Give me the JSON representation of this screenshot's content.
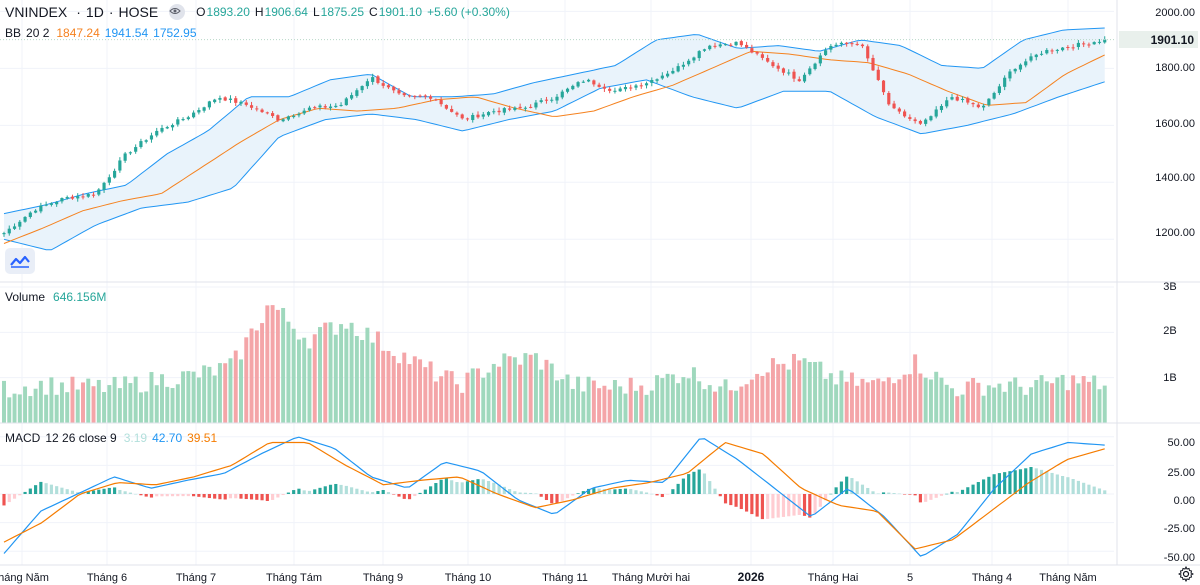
{
  "symbol": {
    "name": "VNINDEX",
    "interval": "1D",
    "exchange": "HOSE",
    "o_label": "O",
    "open": "1893.20",
    "h_label": "H",
    "high": "1906.64",
    "l_label": "L",
    "low": "1875.25",
    "c_label": "C",
    "close": "1901.10",
    "change": "+5.60 (+0.30%)"
  },
  "bb_legend": {
    "name": "BB",
    "params": "20 2",
    "basis": "1847.24",
    "upper": "1941.54",
    "lower": "1752.95"
  },
  "volume_legend": {
    "name": "Volume",
    "value": "646.156M"
  },
  "macd_legend": {
    "name": "MACD",
    "params": "12 26 close 9",
    "hist": "3.19",
    "macd": "42.70",
    "signal": "39.51"
  },
  "price_axis": {
    "ticks": [
      "2000.00",
      "1800.00",
      "1600.00",
      "1400.00",
      "1200.00"
    ],
    "last_price": "1901.10"
  },
  "volume_axis": {
    "ticks": [
      "3B",
      "2B",
      "1B"
    ]
  },
  "macd_axis": {
    "ticks": [
      "50.00",
      "25.00",
      "0.00",
      "-25.00",
      "-50.00"
    ]
  },
  "time_axis": {
    "labels": [
      "tháng Năm",
      "Tháng 6",
      "Tháng 7",
      "Tháng Tám",
      "Tháng 9",
      "Tháng 10",
      "Tháng 11",
      "Tháng Mười hai",
      "2026",
      "Tháng Hai",
      "5",
      "Tháng 4",
      "Tháng Năm"
    ]
  },
  "colors": {
    "up": "#26a69a",
    "down": "#ef5350",
    "vol_up": "#9fd8bd",
    "vol_down": "#f4a5a8",
    "bb_basis": "#f5821f",
    "bb_band": "#2196f3",
    "bb_fill": "#e9f3fb",
    "macd_line": "#2196f3",
    "signal_line": "#f57c00",
    "hist_up_strong": "#26a69a",
    "hist_up_weak": "#b2dfdb",
    "hist_down_strong": "#ef5350",
    "hist_down_weak": "#ffcdd2",
    "grid": "#f0f3fa",
    "last_price_bg": "#e9f0ec"
  },
  "icons": {
    "eye": "eye-icon",
    "logo": "tradingview-logo-icon",
    "settings": "gear-icon"
  },
  "chart_data": {
    "type": "candlestick",
    "price_ylim": [
      1050,
      2040
    ],
    "volume_ylim": [
      0,
      3000000000
    ],
    "macd_ylim": [
      -62,
      62
    ],
    "x": [
      "tháng Năm",
      "Tháng 6",
      "Tháng 7",
      "Tháng Tám",
      "Tháng 9",
      "Tháng 10",
      "Tháng 11",
      "Tháng Mười hai",
      "2026",
      "Tháng Hai",
      "5",
      "Tháng 4",
      "Tháng Năm"
    ],
    "close_anchors": [
      1222,
      1305,
      1345,
      1360,
      1500,
      1580,
      1630,
      1700,
      1670,
      1620,
      1660,
      1670,
      1770,
      1700,
      1700,
      1620,
      1650,
      1660,
      1700,
      1760,
      1720,
      1750,
      1800,
      1880,
      1890,
      1820,
      1760,
      1880,
      1890,
      1660,
      1600,
      1700,
      1660,
      1800,
      1860,
      1880,
      1901.1
    ],
    "bb_basis_anchors": [
      1185,
      1240,
      1300,
      1335,
      1360,
      1450,
      1540,
      1620,
      1660,
      1650,
      1660,
      1690,
      1700,
      1660,
      1630,
      1650,
      1700,
      1740,
      1800,
      1860,
      1850,
      1830,
      1820,
      1780,
      1720,
      1670,
      1680,
      1780,
      1847.24
    ],
    "bb_upper_anchors": [
      1290,
      1320,
      1360,
      1390,
      1500,
      1580,
      1700,
      1700,
      1760,
      1780,
      1700,
      1700,
      1710,
      1750,
      1780,
      1810,
      1900,
      1920,
      1870,
      1880,
      1860,
      1900,
      1880,
      1810,
      1800,
      1900,
      1935,
      1941.54
    ],
    "bb_lower_anchors": [
      1200,
      1160,
      1250,
      1310,
      1330,
      1380,
      1560,
      1620,
      1640,
      1620,
      1580,
      1620,
      1650,
      1730,
      1760,
      1700,
      1660,
      1720,
      1720,
      1630,
      1570,
      1600,
      1640,
      1700,
      1752.95
    ],
    "volume_anchors_B": [
      0.7,
      0.8,
      0.75,
      0.75,
      0.9,
      1.0,
      1.2,
      2.6,
      1.8,
      2.2,
      1.7,
      1.2,
      0.8,
      1.3,
      1.4,
      0.8,
      0.75,
      0.8,
      1.1,
      0.7,
      1.2,
      1.3,
      0.9,
      0.8,
      1.3,
      0.7,
      0.8,
      0.75,
      0.9,
      0.8
    ],
    "macd_anchors": [
      -52,
      -15,
      0,
      15,
      5,
      12,
      18,
      35,
      50,
      40,
      15,
      5,
      28,
      20,
      -5,
      -18,
      5,
      12,
      10,
      50,
      30,
      5,
      -20,
      5,
      -20,
      -55,
      -35,
      5,
      35,
      45,
      42.7
    ],
    "signal_anchors": [
      -42,
      -25,
      0,
      10,
      8,
      15,
      25,
      45,
      45,
      25,
      8,
      12,
      15,
      0,
      -12,
      -5,
      5,
      10,
      18,
      45,
      35,
      5,
      -10,
      -15,
      -48,
      -40,
      -15,
      10,
      30,
      39.51
    ]
  }
}
